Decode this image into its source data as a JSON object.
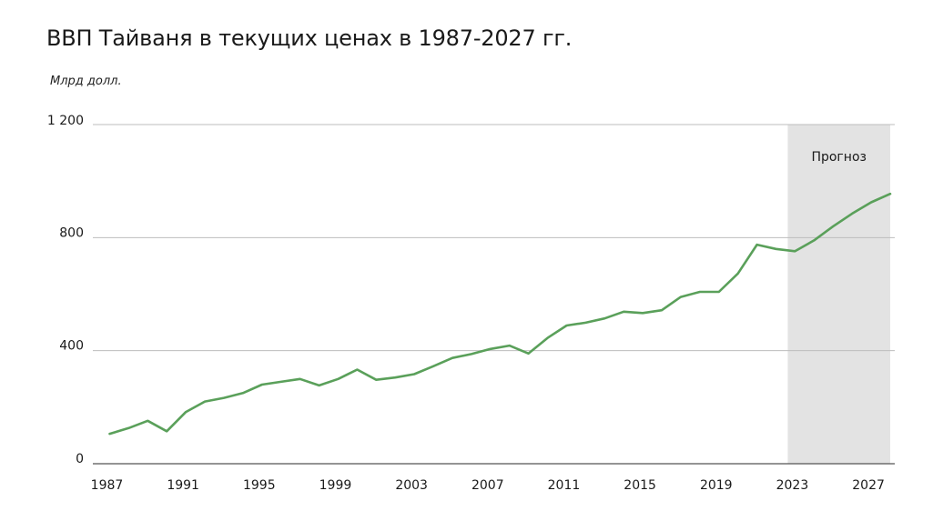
{
  "chart_data": {
    "type": "line",
    "title": "ВВП Тайваня в текущих ценах в 1987-2027 гг.",
    "ylabel": "Млрд долл.",
    "xlabel": "",
    "ylim": [
      0,
      1200
    ],
    "yticks": [
      0,
      400,
      800,
      1200
    ],
    "ytick_labels": [
      "0",
      "400",
      "800",
      "1 200"
    ],
    "xticks": [
      1987,
      1991,
      1995,
      1999,
      2003,
      2007,
      2011,
      2015,
      2019,
      2023,
      2027
    ],
    "forecast_label": "Прогноз",
    "forecast_range": [
      2023,
      2028
    ],
    "series": [
      {
        "name": "ВВП",
        "color": "#5aa05a",
        "x": [
          1987,
          1988,
          1989,
          1990,
          1991,
          1992,
          1993,
          1994,
          1995,
          1996,
          1997,
          1998,
          1999,
          2000,
          2001,
          2002,
          2003,
          2004,
          2005,
          2006,
          2007,
          2008,
          2009,
          2010,
          2011,
          2012,
          2013,
          2014,
          2015,
          2016,
          2017,
          2018,
          2019,
          2020,
          2021,
          2022,
          2023,
          2024,
          2025,
          2026,
          2027,
          2028
        ],
        "values": [
          106,
          126,
          152,
          115,
          183,
          220,
          233,
          250,
          280,
          290,
          300,
          277,
          300,
          333,
          297,
          305,
          317,
          345,
          374,
          388,
          406,
          418,
          390,
          445,
          489,
          499,
          514,
          538,
          533,
          543,
          590,
          608,
          608,
          673,
          775,
          760,
          752,
          790,
          840,
          885,
          925,
          955
        ]
      }
    ]
  }
}
